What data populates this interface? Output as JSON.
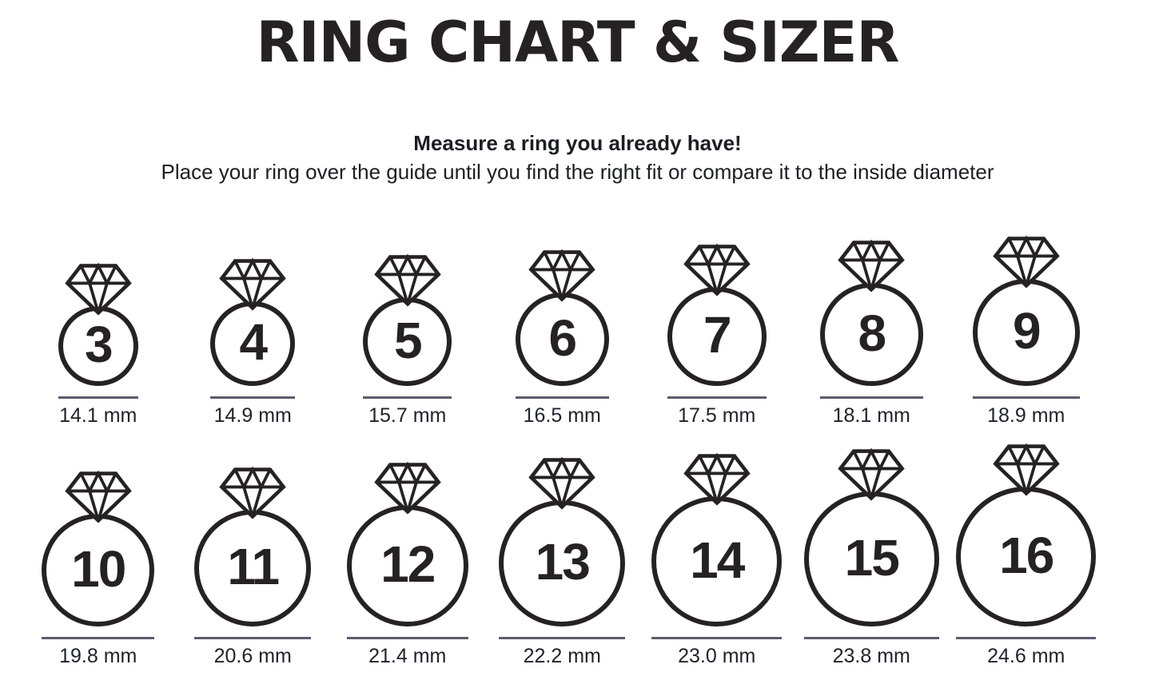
{
  "header": {
    "title": "RING CHART & SIZER"
  },
  "instructions": {
    "heading": "Measure a ring you already have!",
    "body": "Place your ring over the guide until you find the right fit or compare it to the inside diameter"
  },
  "unit": "mm",
  "icons": {
    "ring_gem": "diamond-icon"
  },
  "colors": {
    "ink": "#262223",
    "underline": "#5c5c6d",
    "label_text": "#22222c"
  },
  "rows": [
    {
      "rings": [
        {
          "size": "3",
          "diameter_mm": 14.1,
          "diameter_label": "14.1 mm"
        },
        {
          "size": "4",
          "diameter_mm": 14.9,
          "diameter_label": "14.9 mm"
        },
        {
          "size": "5",
          "diameter_mm": 15.7,
          "diameter_label": "15.7 mm"
        },
        {
          "size": "6",
          "diameter_mm": 16.5,
          "diameter_label": "16.5 mm"
        },
        {
          "size": "7",
          "diameter_mm": 17.5,
          "diameter_label": "17.5 mm"
        },
        {
          "size": "8",
          "diameter_mm": 18.1,
          "diameter_label": "18.1 mm"
        },
        {
          "size": "9",
          "diameter_mm": 18.9,
          "diameter_label": "18.9 mm"
        }
      ]
    },
    {
      "rings": [
        {
          "size": "10",
          "diameter_mm": 19.8,
          "diameter_label": "19.8 mm"
        },
        {
          "size": "11",
          "diameter_mm": 20.6,
          "diameter_label": "20.6 mm"
        },
        {
          "size": "12",
          "diameter_mm": 21.4,
          "diameter_label": "21.4 mm"
        },
        {
          "size": "13",
          "diameter_mm": 22.2,
          "diameter_label": "22.2 mm"
        },
        {
          "size": "14",
          "diameter_mm": 23.0,
          "diameter_label": "23.0 mm"
        },
        {
          "size": "15",
          "diameter_mm": 23.8,
          "diameter_label": "23.8 mm"
        },
        {
          "size": "16",
          "diameter_mm": 24.6,
          "diameter_label": "24.6 mm"
        }
      ]
    }
  ]
}
